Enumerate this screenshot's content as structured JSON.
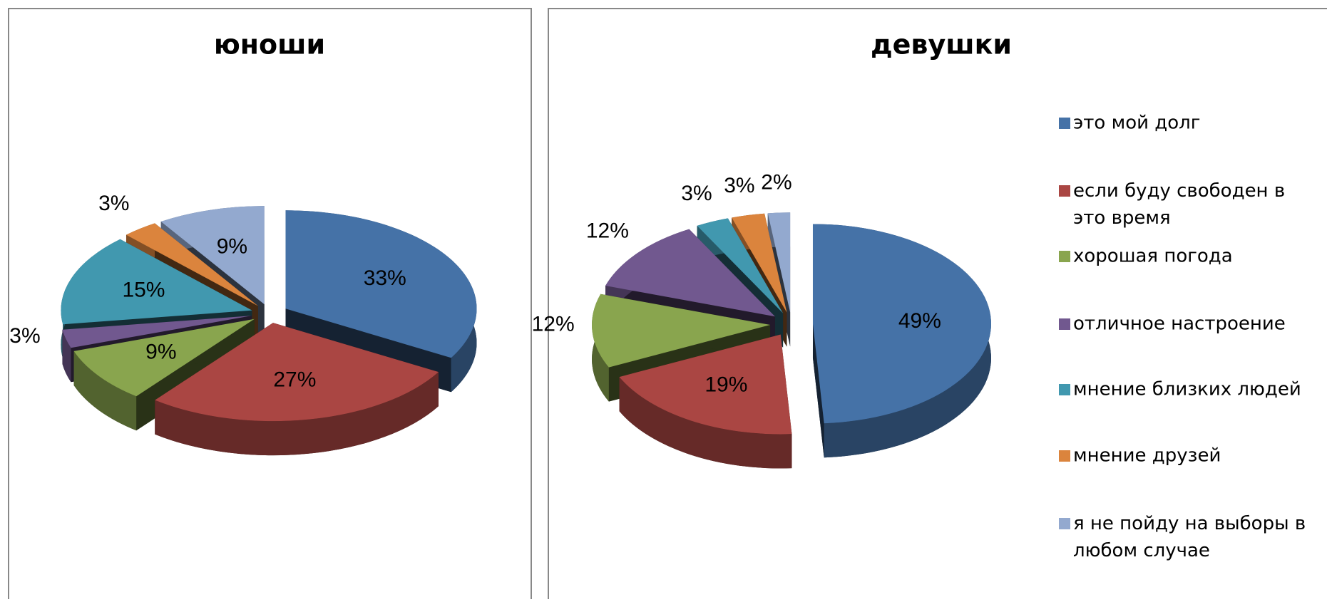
{
  "chart_data": [
    {
      "type": "pie",
      "title": "юноши",
      "values": [
        33,
        27,
        9,
        3,
        15,
        3,
        9
      ],
      "value_labels": [
        "33%",
        "27%",
        "9%",
        "3%",
        "15%",
        "3%",
        "9%"
      ],
      "colors": [
        "#4572A7",
        "#AA4643",
        "#89A54E",
        "#71588F",
        "#4198AF",
        "#DB843D",
        "#93A9CF"
      ]
    },
    {
      "type": "pie",
      "title": "девушки",
      "categories": [
        "это мой долг",
        "если буду свободен в это время",
        "хорошая погода",
        "отличное настроение",
        "мнение близких людей",
        "мнение друзей",
        "я не пойду на выборы в любом случае"
      ],
      "values": [
        49,
        19,
        12,
        12,
        3,
        3,
        2
      ],
      "value_labels": [
        "49%",
        "19%",
        "12%",
        "12%",
        "3%",
        "3%",
        "2%"
      ],
      "colors": [
        "#4572A7",
        "#AA4643",
        "#89A54E",
        "#71588F",
        "#4198AF",
        "#DB843D",
        "#93A9CF"
      ],
      "legend": "right"
    }
  ]
}
